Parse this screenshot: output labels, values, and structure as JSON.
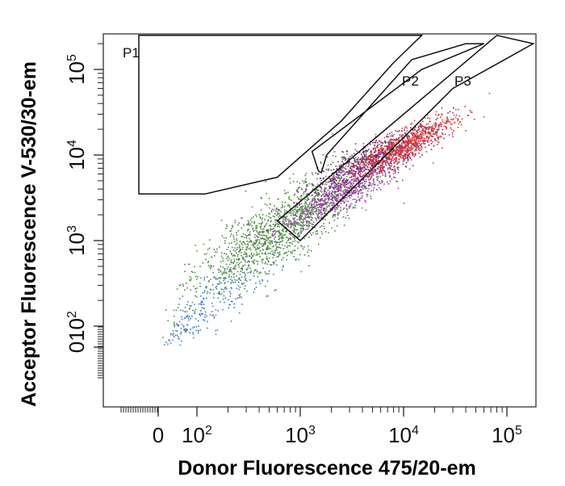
{
  "chart_data": {
    "type": "scatter",
    "title": "",
    "xlabel": "Donor Fluorescence 475/20-em",
    "ylabel": "Acceptor  Fluorescence V-530/30-em",
    "x_scale": "biexponential",
    "y_scale": "biexponential",
    "x_ticks": [
      {
        "value": 0,
        "label": "0"
      },
      {
        "value": 100,
        "label": "10^2"
      },
      {
        "value": 1000,
        "label": "10^3"
      },
      {
        "value": 10000,
        "label": "10^4"
      },
      {
        "value": 100000,
        "label": "10^5"
      }
    ],
    "y_ticks": [
      {
        "value": 0,
        "label": "0"
      },
      {
        "value": 100,
        "label": "10^2"
      },
      {
        "value": 1000,
        "label": "10^3"
      },
      {
        "value": 10000,
        "label": "10^4"
      },
      {
        "value": 100000,
        "label": "10^5"
      }
    ],
    "xlim": [
      -50,
      250000
    ],
    "ylim": [
      -50,
      250000
    ],
    "grid": false,
    "gates": [
      {
        "name": "P1",
        "vertices": [
          [
            -50,
            3500
          ],
          [
            120,
            3500
          ],
          [
            600,
            5500
          ],
          [
            2500,
            25000
          ],
          [
            8000,
            120000
          ],
          [
            15000,
            250000
          ],
          [
            -50,
            250000
          ]
        ]
      },
      {
        "name": "P2",
        "vertices": [
          [
            1500,
            6500
          ],
          [
            1300,
            11000
          ],
          [
            15000,
            100000
          ],
          [
            60000,
            200000
          ],
          [
            40000,
            200000
          ],
          [
            12000,
            130000
          ],
          [
            1800,
            10000
          ],
          [
            1600,
            6200
          ]
        ]
      },
      {
        "name": "P3",
        "vertices": [
          [
            1000,
            1000
          ],
          [
            600,
            1700
          ],
          [
            80000,
            250000
          ],
          [
            180000,
            200000
          ],
          [
            30000,
            60000
          ]
        ]
      }
    ],
    "series": [
      {
        "name": "",
        "color": "#3d7cc4",
        "center": [
          150,
          200
        ],
        "spread": [
          0.35,
          0.35
        ],
        "count": 260
      },
      {
        "name": "",
        "color": "#4e8c43",
        "center": [
          700,
          1500
        ],
        "spread": [
          0.45,
          0.4
        ],
        "count": 1500
      },
      {
        "name": "",
        "color": "#6b2b73",
        "center": [
          5000,
          9000
        ],
        "spread": [
          0.3,
          0.2
        ],
        "count": 700
      },
      {
        "name": "",
        "color": "#9b3aa8",
        "center": [
          2500,
          3500
        ],
        "spread": [
          0.3,
          0.22
        ],
        "count": 600
      },
      {
        "name": "",
        "color": "#d7373a",
        "center": [
          10000,
          13000
        ],
        "spread": [
          0.25,
          0.18
        ],
        "count": 800
      }
    ]
  }
}
